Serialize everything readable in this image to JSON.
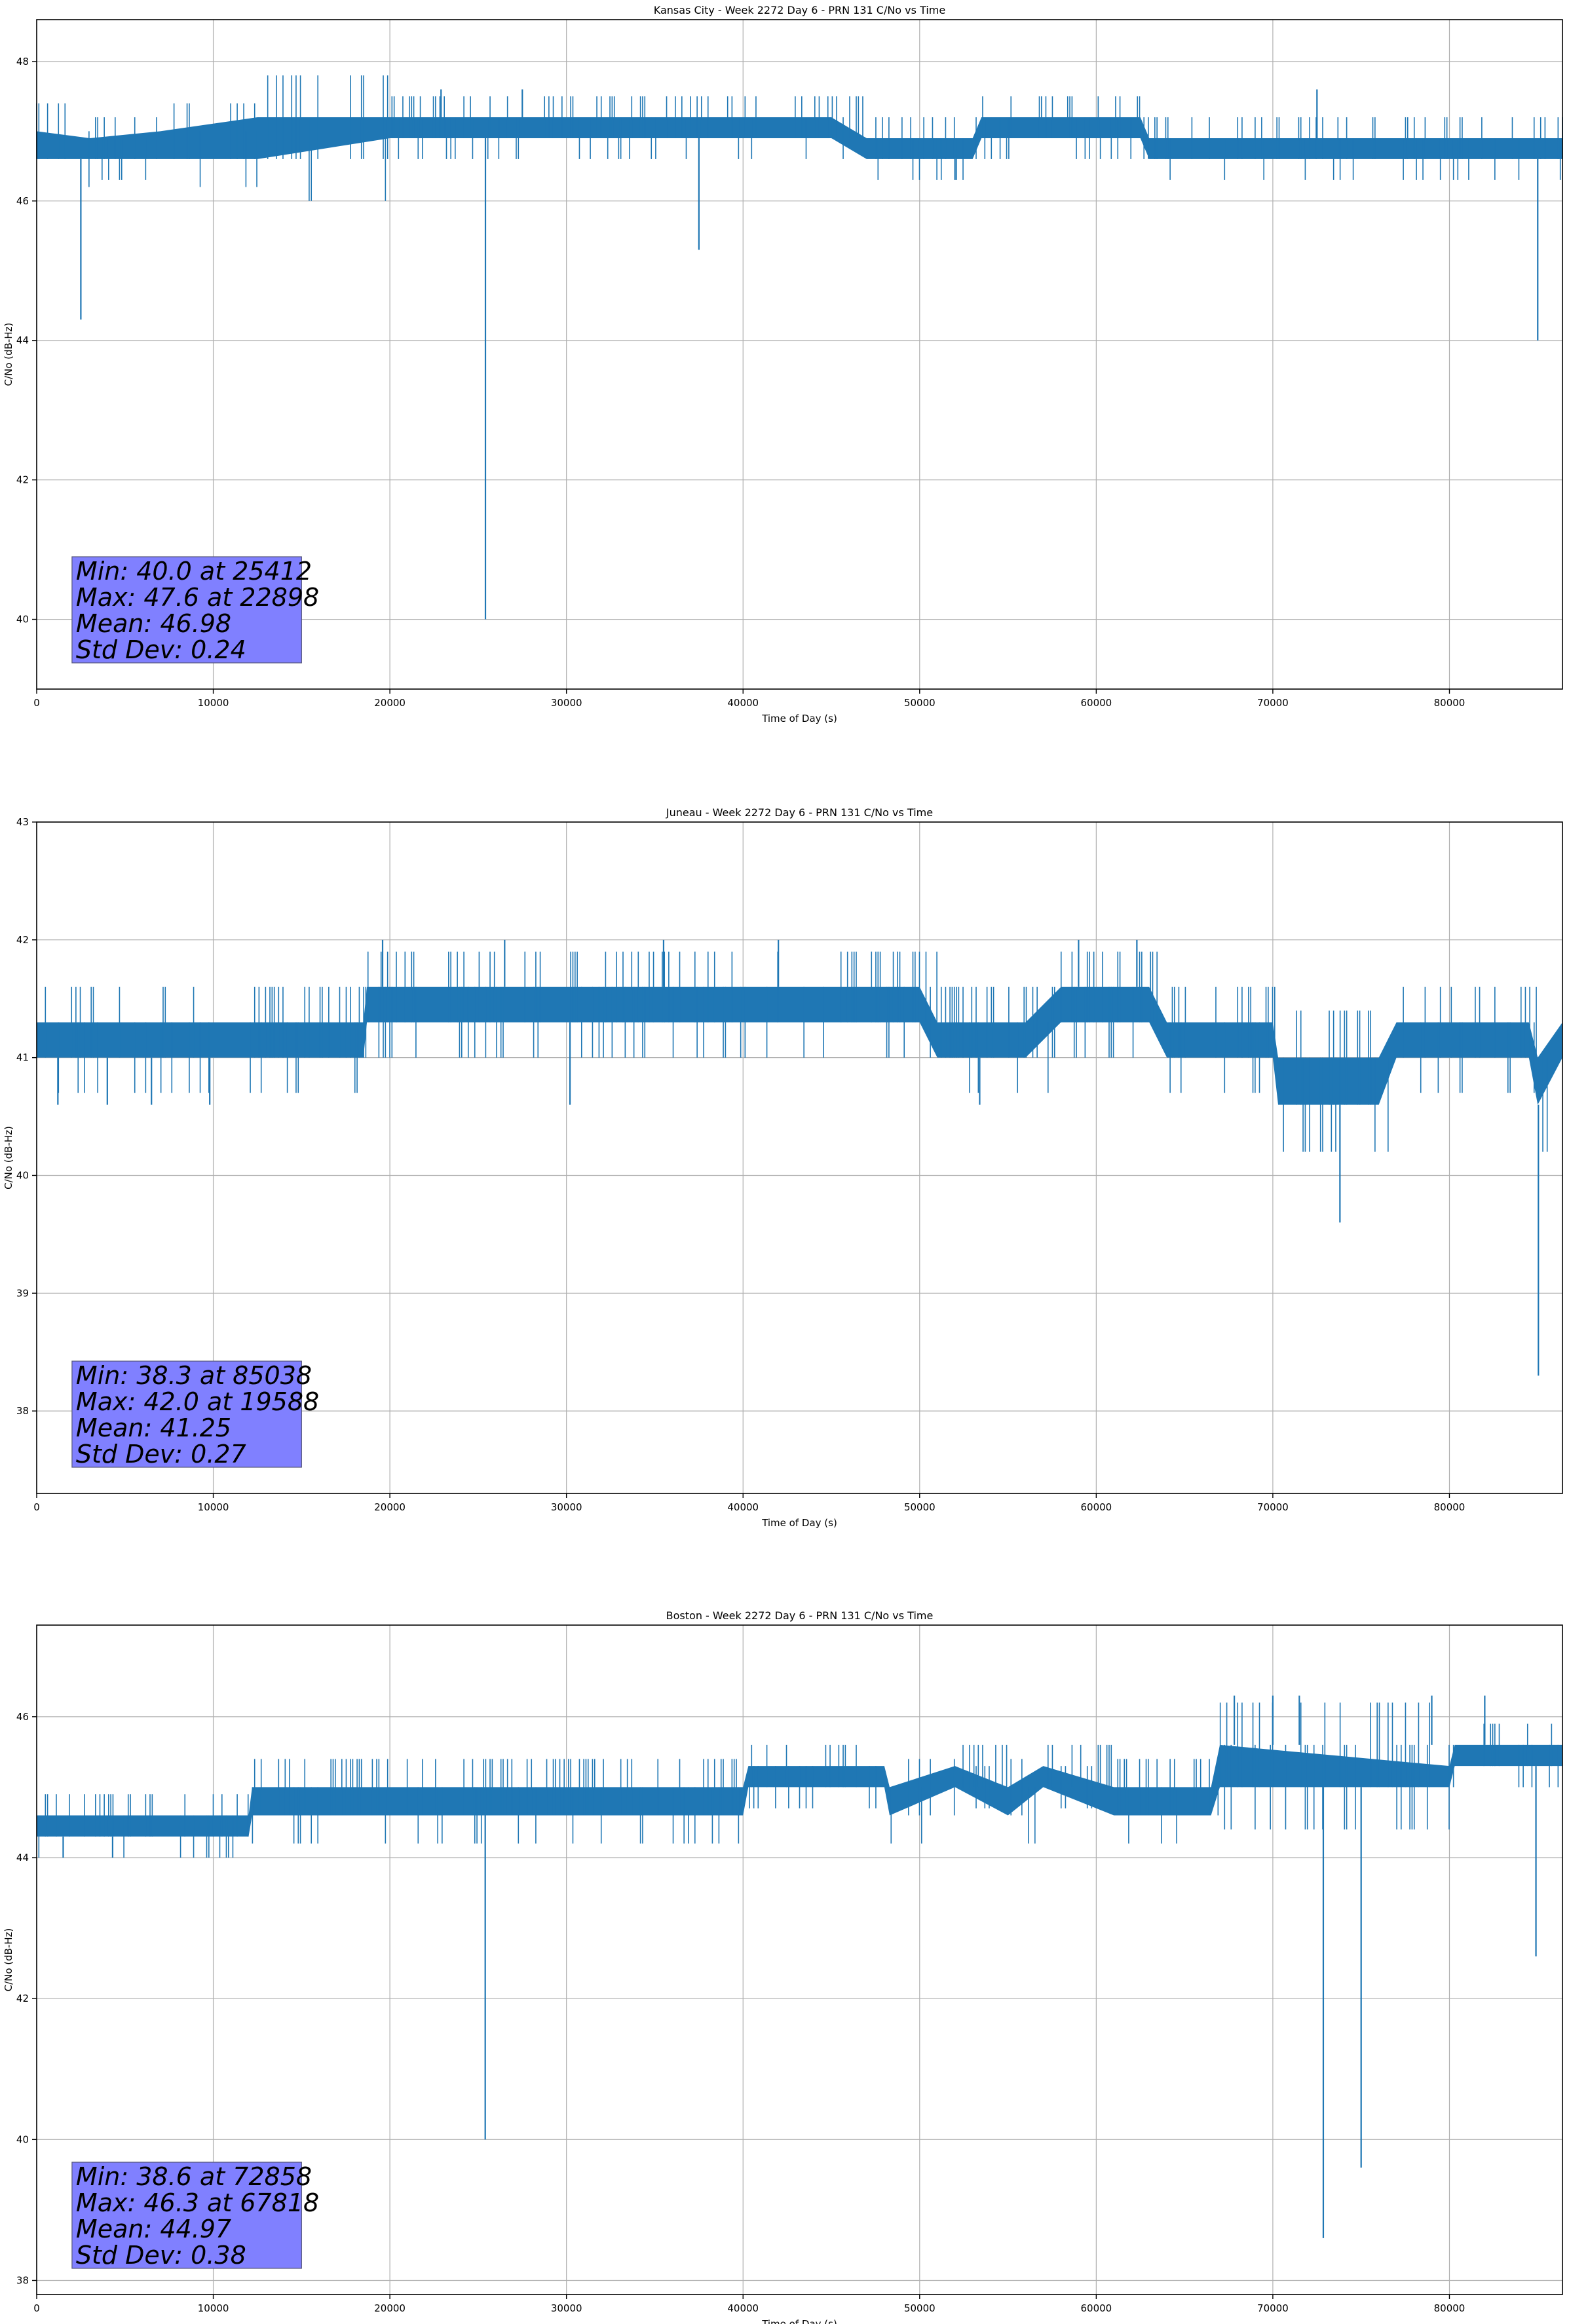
{
  "chart_data": [
    {
      "type": "line",
      "title": "Kansas City - Week 2272 Day 6 - PRN 131 C/No vs Time",
      "xlabel": "Time of Day (s)",
      "ylabel": "C/No (dB-Hz)",
      "xlim": [
        0,
        86400
      ],
      "ylim": [
        39,
        48.6
      ],
      "xticks": [
        0,
        10000,
        20000,
        30000,
        40000,
        50000,
        60000,
        70000,
        80000
      ],
      "yticks": [
        40,
        42,
        44,
        46,
        48
      ],
      "grid": true,
      "series_color": "#1f77b4",
      "stats": [
        "Min: 40.0 at 25412",
        "Max: 47.6 at 22898",
        "Mean: 46.98",
        "Std Dev: 0.24"
      ],
      "stats_box_color": "#8080ff",
      "series": [
        {
          "band": [
            {
              "x": 0,
              "lo": 46.6,
              "hi": 47.0
            },
            {
              "x": 3000,
              "lo": 46.6,
              "hi": 46.9
            },
            {
              "x": 7000,
              "lo": 46.6,
              "hi": 47.0
            },
            {
              "x": 12500,
              "lo": 46.6,
              "hi": 47.2
            },
            {
              "x": 20000,
              "lo": 46.9,
              "hi": 47.2
            },
            {
              "x": 30000,
              "lo": 46.9,
              "hi": 47.2
            },
            {
              "x": 40000,
              "lo": 46.9,
              "hi": 47.2
            },
            {
              "x": 45000,
              "lo": 46.9,
              "hi": 47.2
            },
            {
              "x": 47000,
              "lo": 46.6,
              "hi": 46.9
            },
            {
              "x": 53000,
              "lo": 46.6,
              "hi": 46.9
            },
            {
              "x": 53500,
              "lo": 46.9,
              "hi": 47.2
            },
            {
              "x": 62500,
              "lo": 46.9,
              "hi": 47.2
            },
            {
              "x": 63000,
              "lo": 46.6,
              "hi": 46.9
            },
            {
              "x": 74000,
              "lo": 46.6,
              "hi": 46.9
            },
            {
              "x": 80000,
              "lo": 46.6,
              "hi": 46.9
            },
            {
              "x": 86400,
              "lo": 46.6,
              "hi": 46.9
            }
          ],
          "spikes": [
            {
              "x": 2500,
              "y": 44.3
            },
            {
              "x": 25412,
              "y": 40.0
            },
            {
              "x": 37500,
              "y": 45.3
            },
            {
              "x": 52000,
              "y": 46.3
            },
            {
              "x": 85000,
              "y": 44.0
            },
            {
              "x": 22898,
              "y": 47.6
            },
            {
              "x": 27500,
              "y": 47.6
            },
            {
              "x": 72500,
              "y": 47.6
            }
          ]
        }
      ]
    },
    {
      "type": "line",
      "title": "Juneau - Week 2272 Day 6 - PRN 131 C/No vs Time",
      "xlabel": "Time of Day (s)",
      "ylabel": "C/No (dB-Hz)",
      "xlim": [
        0,
        86400
      ],
      "ylim": [
        37.3,
        43
      ],
      "xticks": [
        0,
        10000,
        20000,
        30000,
        40000,
        50000,
        60000,
        70000,
        80000
      ],
      "yticks": [
        38,
        39,
        40,
        41,
        42,
        43
      ],
      "grid": true,
      "series_color": "#1f77b4",
      "stats": [
        "Min: 38.3 at 85038",
        "Max: 42.0 at 19588",
        "Mean: 41.25",
        "Std Dev: 0.27"
      ],
      "stats_box_color": "#8080ff",
      "series": [
        {
          "band": [
            {
              "x": 0,
              "lo": 41.0,
              "hi": 41.3
            },
            {
              "x": 18500,
              "lo": 41.0,
              "hi": 41.3
            },
            {
              "x": 18700,
              "lo": 41.3,
              "hi": 41.6
            },
            {
              "x": 27000,
              "lo": 41.3,
              "hi": 41.6
            },
            {
              "x": 30000,
              "lo": 41.3,
              "hi": 41.6
            },
            {
              "x": 50000,
              "lo": 41.3,
              "hi": 41.6
            },
            {
              "x": 51000,
              "lo": 41.0,
              "hi": 41.3
            },
            {
              "x": 56000,
              "lo": 41.0,
              "hi": 41.3
            },
            {
              "x": 58000,
              "lo": 41.3,
              "hi": 41.6
            },
            {
              "x": 63000,
              "lo": 41.3,
              "hi": 41.6
            },
            {
              "x": 64000,
              "lo": 41.0,
              "hi": 41.3
            },
            {
              "x": 70000,
              "lo": 41.0,
              "hi": 41.3
            },
            {
              "x": 70300,
              "lo": 40.6,
              "hi": 41.0
            },
            {
              "x": 76000,
              "lo": 40.6,
              "hi": 41.0
            },
            {
              "x": 77000,
              "lo": 41.0,
              "hi": 41.3
            },
            {
              "x": 84500,
              "lo": 41.0,
              "hi": 41.3
            },
            {
              "x": 85000,
              "lo": 40.6,
              "hi": 41.0
            },
            {
              "x": 86400,
              "lo": 41.0,
              "hi": 41.3
            }
          ],
          "spikes": [
            {
              "x": 1200,
              "y": 40.6
            },
            {
              "x": 4000,
              "y": 40.6
            },
            {
              "x": 6500,
              "y": 40.6
            },
            {
              "x": 9800,
              "y": 40.6
            },
            {
              "x": 30200,
              "y": 40.6
            },
            {
              "x": 53400,
              "y": 40.6
            },
            {
              "x": 73800,
              "y": 39.6
            },
            {
              "x": 85038,
              "y": 38.3
            },
            {
              "x": 19588,
              "y": 42.0
            },
            {
              "x": 26500,
              "y": 42.0
            },
            {
              "x": 35500,
              "y": 42.0
            },
            {
              "x": 42000,
              "y": 42.0
            },
            {
              "x": 59000,
              "y": 42.0
            },
            {
              "x": 62300,
              "y": 42.0
            }
          ]
        }
      ]
    },
    {
      "type": "line",
      "title": "Boston - Week 2272 Day 6 - PRN 131 C/No vs Time",
      "xlabel": "Time of Day (s)",
      "ylabel": "C/No (dB-Hz)",
      "xlim": [
        0,
        86400
      ],
      "ylim": [
        37.8,
        47.3
      ],
      "xticks": [
        0,
        10000,
        20000,
        30000,
        40000,
        50000,
        60000,
        70000,
        80000
      ],
      "yticks": [
        38,
        40,
        42,
        44,
        46
      ],
      "grid": true,
      "series_color": "#1f77b4",
      "stats": [
        "Min: 38.6 at 72858",
        "Max: 46.3 at 67818",
        "Mean: 44.97",
        "Std Dev: 0.38"
      ],
      "stats_box_color": "#8080ff",
      "series": [
        {
          "band": [
            {
              "x": 0,
              "lo": 44.3,
              "hi": 44.6
            },
            {
              "x": 12000,
              "lo": 44.3,
              "hi": 44.6
            },
            {
              "x": 12200,
              "lo": 44.6,
              "hi": 45.0
            },
            {
              "x": 25000,
              "lo": 44.6,
              "hi": 45.0
            },
            {
              "x": 40000,
              "lo": 44.6,
              "hi": 45.0
            },
            {
              "x": 40300,
              "lo": 45.0,
              "hi": 45.3
            },
            {
              "x": 48000,
              "lo": 45.0,
              "hi": 45.3
            },
            {
              "x": 48300,
              "lo": 44.6,
              "hi": 45.0
            },
            {
              "x": 52000,
              "lo": 45.0,
              "hi": 45.3
            },
            {
              "x": 55000,
              "lo": 44.6,
              "hi": 45.0
            },
            {
              "x": 57000,
              "lo": 45.0,
              "hi": 45.3
            },
            {
              "x": 61000,
              "lo": 44.6,
              "hi": 45.0
            },
            {
              "x": 66500,
              "lo": 44.6,
              "hi": 45.0
            },
            {
              "x": 67000,
              "lo": 45.0,
              "hi": 45.6
            },
            {
              "x": 80000,
              "lo": 45.0,
              "hi": 45.3
            },
            {
              "x": 80300,
              "lo": 45.3,
              "hi": 45.6
            },
            {
              "x": 86400,
              "lo": 45.3,
              "hi": 45.6
            }
          ],
          "spikes": [
            {
              "x": 1500,
              "y": 44.0
            },
            {
              "x": 4300,
              "y": 44.0
            },
            {
              "x": 25400,
              "y": 40.0
            },
            {
              "x": 72858,
              "y": 38.6
            },
            {
              "x": 75000,
              "y": 39.6
            },
            {
              "x": 84900,
              "y": 42.6
            },
            {
              "x": 67818,
              "y": 46.3
            },
            {
              "x": 70000,
              "y": 46.3
            },
            {
              "x": 71500,
              "y": 46.3
            },
            {
              "x": 79000,
              "y": 46.3
            },
            {
              "x": 82000,
              "y": 46.3
            }
          ]
        }
      ]
    }
  ]
}
